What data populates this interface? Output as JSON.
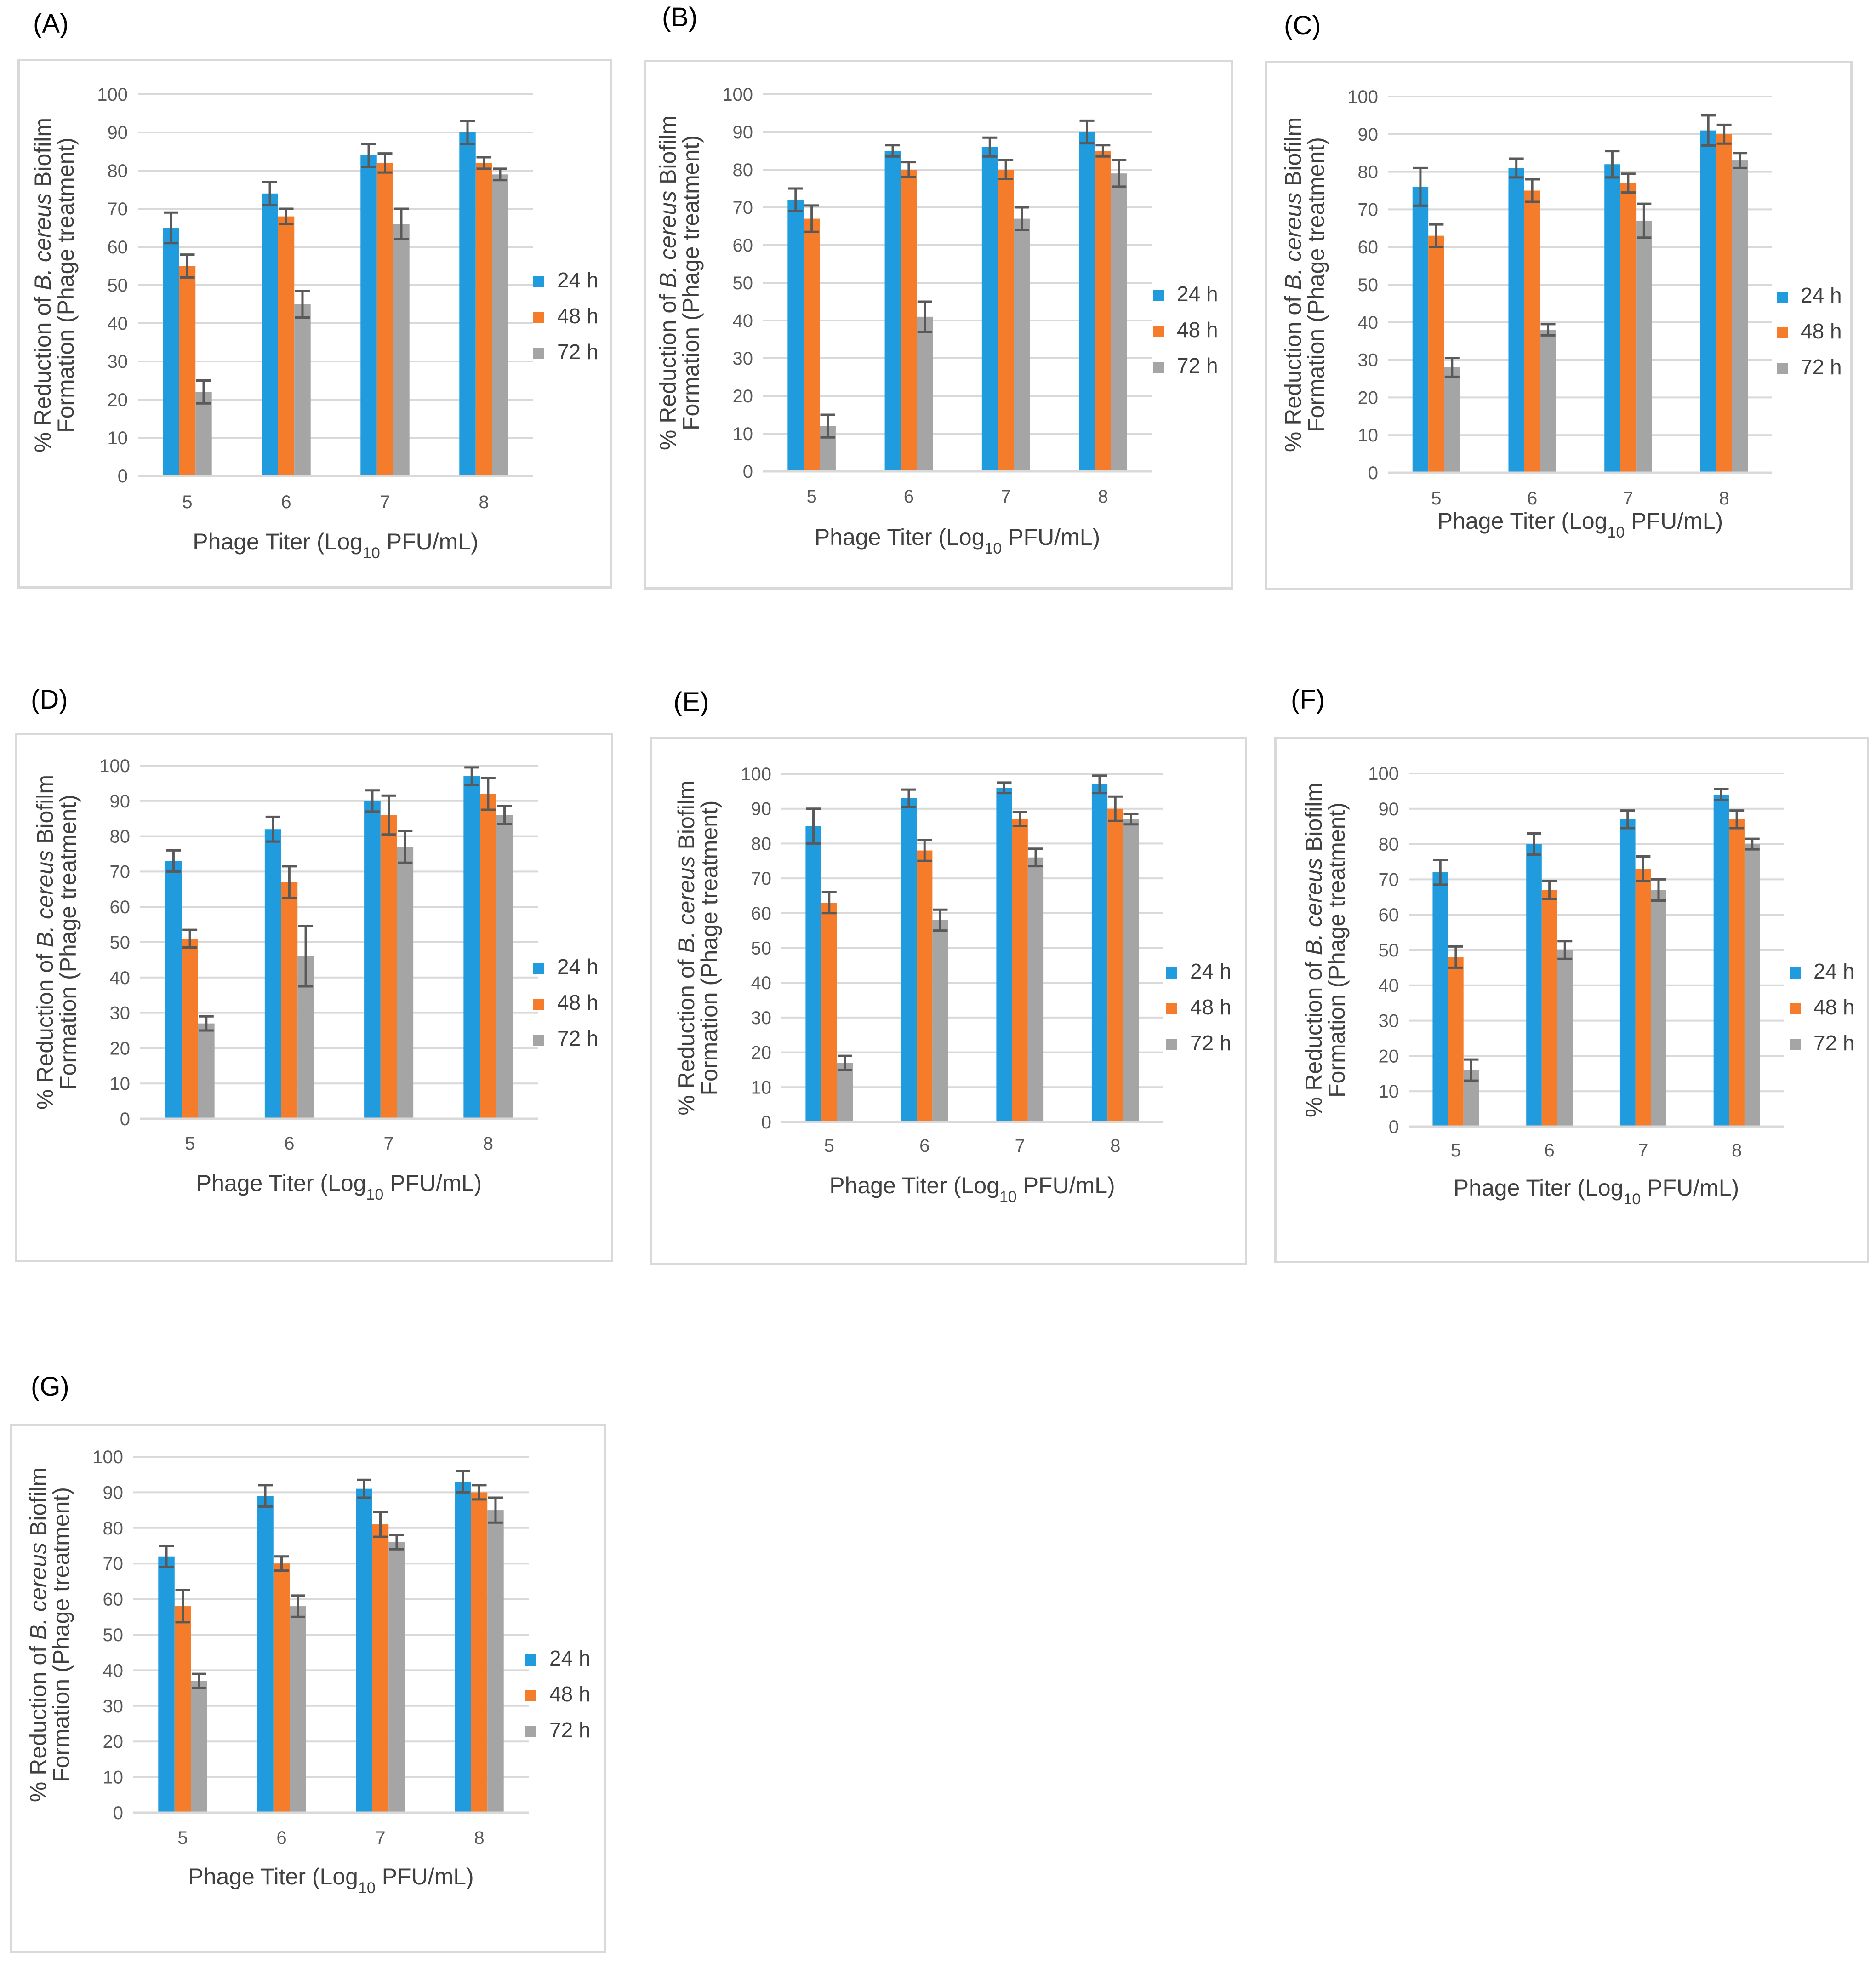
{
  "series_names": [
    "24 h",
    "48 h",
    "72 h"
  ],
  "colors": {
    "24 h": "#1F9BDE",
    "48 h": "#F47C2A",
    "72 h": "#A5A5A5",
    "error_bar": "#595959",
    "grid": "#d9d9d9",
    "axis": "#d9d9d9"
  },
  "chart_data": [
    {
      "type": "bar",
      "panel": "(A)",
      "categories": [
        "5",
        "6",
        "7",
        "8"
      ],
      "ylabel_line1": "% Reduction of ",
      "ylabel_species": "B. cereus",
      "ylabel_line1_end": " Biofilm",
      "ylabel_line2": "Formation  (Phage treatment)",
      "xlabel_pre": "Phage Titer (Log",
      "xlabel_sub": "10",
      "xlabel_post": " PFU/mL)",
      "yticks": [
        "0",
        "10",
        "20",
        "30",
        "40",
        "50",
        "60",
        "70",
        "80",
        "90",
        "100"
      ],
      "ylim": [
        0,
        100
      ],
      "series": [
        {
          "name": "24 h",
          "values": [
            65,
            74,
            84,
            90
          ],
          "errors": [
            4,
            3,
            3,
            3
          ]
        },
        {
          "name": "48 h",
          "values": [
            55,
            68,
            82,
            82
          ],
          "errors": [
            3,
            2,
            2.5,
            1.5
          ]
        },
        {
          "name": "72 h",
          "values": [
            22,
            45,
            66,
            79
          ],
          "errors": [
            3,
            3.5,
            4,
            1.5
          ]
        }
      ]
    },
    {
      "type": "bar",
      "panel": "(B)",
      "categories": [
        "5",
        "6",
        "7",
        "8"
      ],
      "ylabel_line1": "% Reduction of ",
      "ylabel_species": "B. cereus",
      "ylabel_line1_end": " Biofilm",
      "ylabel_line2": "Formation  (Phage treatment)",
      "xlabel_pre": "Phage Titer (Log",
      "xlabel_sub": "10",
      "xlabel_post": " PFU/mL)",
      "yticks": [
        "0",
        "10",
        "20",
        "30",
        "40",
        "50",
        "60",
        "70",
        "80",
        "90",
        "100"
      ],
      "ylim": [
        0,
        100
      ],
      "series": [
        {
          "name": "24 h",
          "values": [
            72,
            85,
            86,
            90
          ],
          "errors": [
            3,
            1.5,
            2.5,
            3
          ]
        },
        {
          "name": "48 h",
          "values": [
            67,
            80,
            80,
            85
          ],
          "errors": [
            3.5,
            2,
            2.5,
            1.5
          ]
        },
        {
          "name": "72 h",
          "values": [
            12,
            41,
            67,
            79
          ],
          "errors": [
            3,
            4,
            3,
            3.5
          ]
        }
      ]
    },
    {
      "type": "bar",
      "panel": "(C)",
      "categories": [
        "5",
        "6",
        "7",
        "8"
      ],
      "ylabel_line1": "% Reduction of ",
      "ylabel_species": "B. cereus",
      "ylabel_line1_end": " Biofilm",
      "ylabel_line2": "Formation  (Phage treatment)",
      "xlabel_pre": "Phage Titer (Log",
      "xlabel_sub": "10",
      "xlabel_post": " PFU/mL)",
      "yticks": [
        "0",
        "10",
        "20",
        "30",
        "40",
        "50",
        "60",
        "70",
        "80",
        "90",
        "100"
      ],
      "ylim": [
        0,
        100
      ],
      "series": [
        {
          "name": "24 h",
          "values": [
            76,
            81,
            82,
            91
          ],
          "errors": [
            5,
            2.5,
            3.5,
            4
          ]
        },
        {
          "name": "48 h",
          "values": [
            63,
            75,
            77,
            90
          ],
          "errors": [
            3,
            3,
            2.5,
            2.5
          ]
        },
        {
          "name": "72 h",
          "values": [
            28,
            38,
            67,
            83
          ],
          "errors": [
            2.5,
            1.5,
            4.5,
            2
          ]
        }
      ]
    },
    {
      "type": "bar",
      "panel": "(D)",
      "categories": [
        "5",
        "6",
        "7",
        "8"
      ],
      "ylabel_line1": "% Reduction of ",
      "ylabel_species": "B. cereus",
      "ylabel_line1_end": " Biofilm",
      "ylabel_line2": "Formation  (Phage treatment)",
      "xlabel_pre": "Phage Titer (Log",
      "xlabel_sub": "10",
      "xlabel_post": " PFU/mL)",
      "yticks": [
        "0",
        "10",
        "20",
        "30",
        "40",
        "50",
        "60",
        "70",
        "80",
        "90",
        "100"
      ],
      "ylim": [
        0,
        100
      ],
      "series": [
        {
          "name": "24 h",
          "values": [
            73,
            82,
            90,
            97
          ],
          "errors": [
            3,
            3.5,
            3,
            2.5
          ]
        },
        {
          "name": "48 h",
          "values": [
            51,
            67,
            86,
            92
          ],
          "errors": [
            2.5,
            4.5,
            5.5,
            4.5
          ]
        },
        {
          "name": "72 h",
          "values": [
            27,
            46,
            77,
            86
          ],
          "errors": [
            2,
            8.5,
            4.5,
            2.5
          ]
        }
      ]
    },
    {
      "type": "bar",
      "panel": "(E)",
      "categories": [
        "5",
        "6",
        "7",
        "8"
      ],
      "ylabel_line1": "% Reduction of ",
      "ylabel_species": "B. cereus",
      "ylabel_line1_end": " Biofilm",
      "ylabel_line2": "Formation  (Phage treatment)",
      "xlabel_pre": "Phage Titer (Log",
      "xlabel_sub": "10",
      "xlabel_post": " PFU/mL)",
      "yticks": [
        "0",
        "10",
        "20",
        "30",
        "40",
        "50",
        "60",
        "70",
        "80",
        "90",
        "100"
      ],
      "ylim": [
        0,
        100
      ],
      "series": [
        {
          "name": "24 h",
          "values": [
            85,
            93,
            96,
            97
          ],
          "errors": [
            5,
            2.5,
            1.5,
            2.5
          ]
        },
        {
          "name": "48 h",
          "values": [
            63,
            78,
            87,
            90
          ],
          "errors": [
            3,
            3,
            2,
            3.5
          ]
        },
        {
          "name": "72 h",
          "values": [
            17,
            58,
            76,
            87
          ],
          "errors": [
            2,
            3,
            2.5,
            1.5
          ]
        }
      ]
    },
    {
      "type": "bar",
      "panel": "(F)",
      "categories": [
        "5",
        "6",
        "7",
        "8"
      ],
      "ylabel_line1": "% Reduction of ",
      "ylabel_species": "B. cereus",
      "ylabel_line1_end": " Biofilm",
      "ylabel_line2": "Formation  (Phage treatment)",
      "xlabel_pre": "Phage Titer (Log",
      "xlabel_sub": "10",
      "xlabel_post": " PFU/mL)",
      "yticks": [
        "0",
        "10",
        "20",
        "30",
        "40",
        "50",
        "60",
        "70",
        "80",
        "90",
        "100"
      ],
      "ylim": [
        0,
        100
      ],
      "series": [
        {
          "name": "24 h",
          "values": [
            72,
            80,
            87,
            94
          ],
          "errors": [
            3.5,
            3,
            2.5,
            1.5
          ]
        },
        {
          "name": "48 h",
          "values": [
            48,
            67,
            73,
            87
          ],
          "errors": [
            3,
            2.5,
            3.5,
            2.5
          ]
        },
        {
          "name": "72 h",
          "values": [
            16,
            50,
            67,
            80
          ],
          "errors": [
            3,
            2.5,
            3,
            1.5
          ]
        }
      ]
    },
    {
      "type": "bar",
      "panel": "(G)",
      "categories": [
        "5",
        "6",
        "7",
        "8"
      ],
      "ylabel_line1": "% Reduction of ",
      "ylabel_species": "B. cereus",
      "ylabel_line1_end": " Biofilm",
      "ylabel_line2": "Formation  (Phage treatment)",
      "xlabel_pre": "Phage Titer (Log",
      "xlabel_sub": "10",
      "xlabel_post": " PFU/mL)",
      "yticks": [
        "0",
        "10",
        "20",
        "30",
        "40",
        "50",
        "60",
        "70",
        "80",
        "90",
        "100"
      ],
      "ylim": [
        0,
        100
      ],
      "series": [
        {
          "name": "24 h",
          "values": [
            72,
            89,
            91,
            93
          ],
          "errors": [
            3,
            3,
            2.5,
            3
          ]
        },
        {
          "name": "48 h",
          "values": [
            58,
            70,
            81,
            90
          ],
          "errors": [
            4.5,
            2,
            3.5,
            2
          ]
        },
        {
          "name": "72 h",
          "values": [
            37,
            58,
            76,
            85
          ],
          "errors": [
            2,
            3,
            2,
            3.5
          ]
        }
      ]
    }
  ]
}
